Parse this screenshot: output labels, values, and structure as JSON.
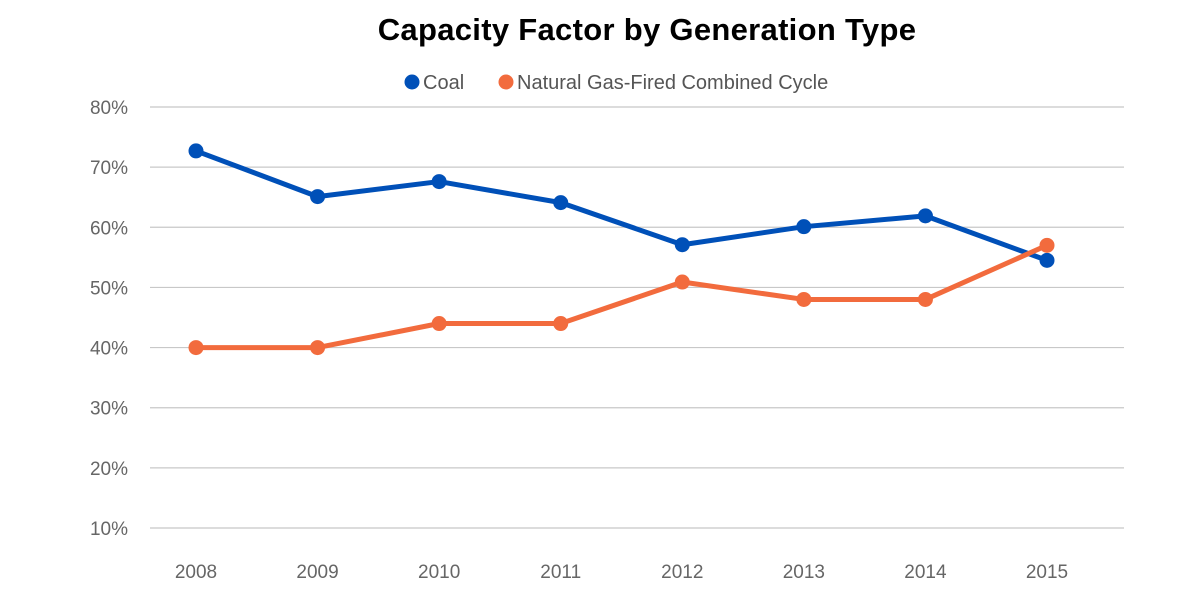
{
  "chart_data": {
    "type": "line",
    "title": "Capacity Factor by Generation Type",
    "xlabel": "",
    "ylabel": "",
    "categories": [
      "2008",
      "2009",
      "2010",
      "2011",
      "2012",
      "2013",
      "2014",
      "2015"
    ],
    "y_ticks": [
      "10%",
      "20%",
      "30%",
      "40%",
      "50%",
      "60%",
      "70%",
      "80%"
    ],
    "ylim": [
      10,
      80
    ],
    "grid": true,
    "legend_position": "top-center",
    "series": [
      {
        "name": "Coal",
        "color": "#0050b8",
        "values": [
          72.7,
          65.1,
          67.6,
          64.1,
          57.1,
          60.1,
          61.9,
          54.5
        ]
      },
      {
        "name": "Natural Gas-Fired Combined Cycle",
        "color": "#f26b3d",
        "values": [
          40.0,
          40.0,
          44.0,
          44.0,
          50.9,
          48.0,
          48.0,
          57.0
        ]
      }
    ]
  }
}
